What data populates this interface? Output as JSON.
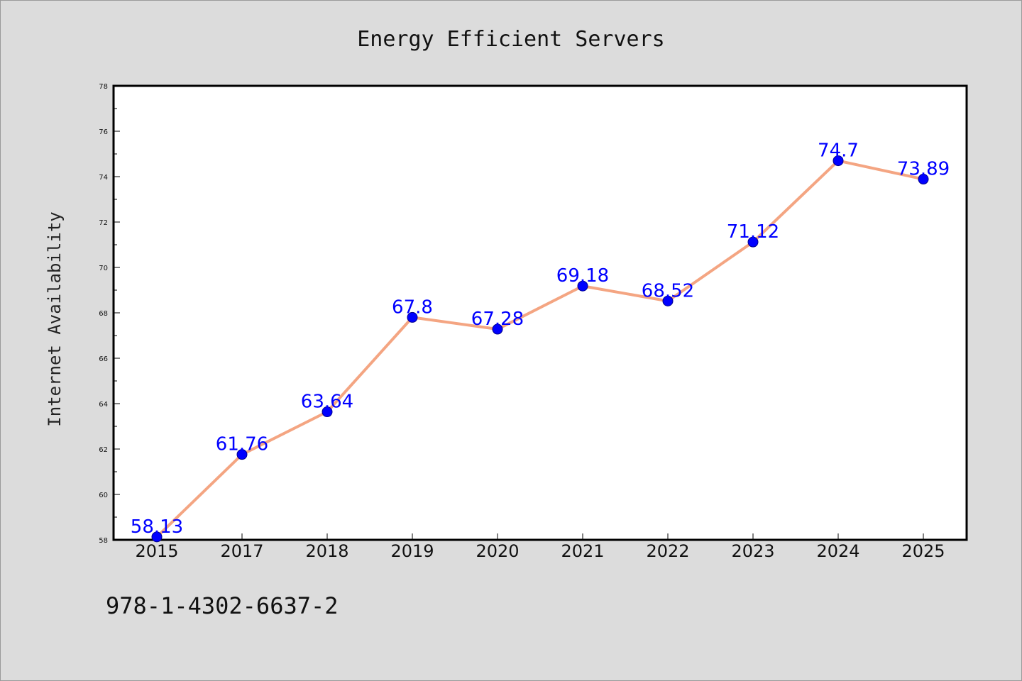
{
  "chart_data": {
    "type": "line",
    "title": "Energy Efficient Servers",
    "xlabel": "",
    "ylabel": "Internet Availability",
    "categories": [
      "2015",
      "2017",
      "2018",
      "2019",
      "2020",
      "2021",
      "2022",
      "2023",
      "2024",
      "2025"
    ],
    "series": [
      {
        "values": [
          58.13,
          61.76,
          63.64,
          67.8,
          67.28,
          69.18,
          68.52,
          71.12,
          74.7,
          73.89
        ],
        "labels": [
          "58.13",
          "61.76",
          "63.64",
          "67.8",
          "67.28",
          "69.18",
          "68.52",
          "71.12",
          "74.7",
          "73.89"
        ],
        "line_color": "#f4a582",
        "marker_color": "#0000ff"
      }
    ],
    "ylim": [
      58,
      78
    ],
    "yticks": [
      "58",
      "60",
      "62",
      "64",
      "66",
      "68",
      "70",
      "72",
      "74",
      "76",
      "78"
    ],
    "grid": false,
    "plot_background": "#ffffff"
  },
  "annotation": {
    "isbn": "978-1-4302-6637-2"
  }
}
